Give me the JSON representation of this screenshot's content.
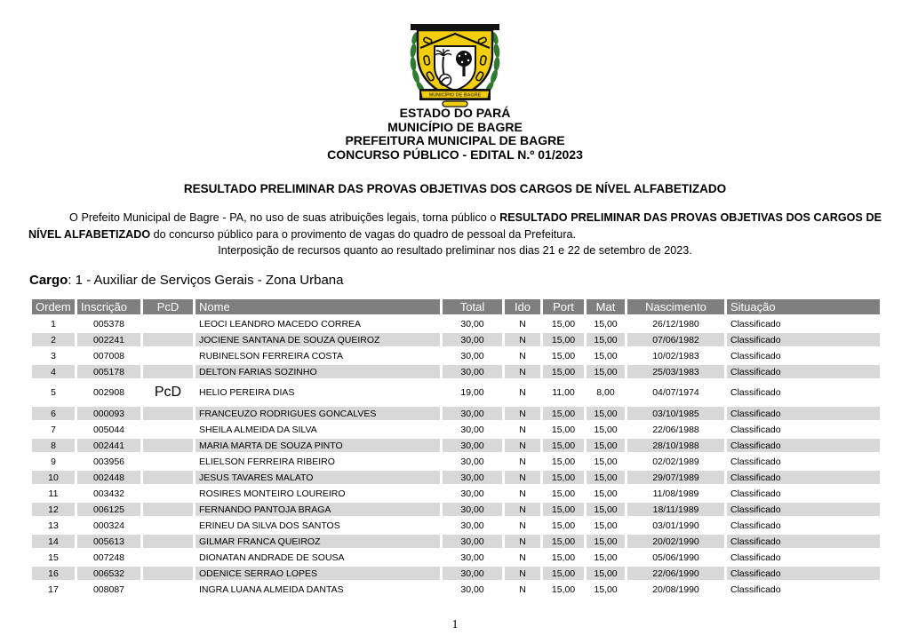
{
  "crest": {
    "banner_text": "MUNICÍPIO DE BAGRE"
  },
  "org_header": {
    "lines": [
      "ESTADO DO PARÁ",
      "MUNICÍPIO DE BAGRE",
      "PREFEITURA MUNICIPAL DE BAGRE",
      "CONCURSO PÚBLICO - EDITAL N.º 01/2023"
    ]
  },
  "title": "RESULTADO PRELIMINAR DAS PROVAS OBJETIVAS DOS CARGOS DE NÍVEL ALFABETIZADO",
  "intro": {
    "before": "O Prefeito Municipal de Bagre - PA, no uso de suas atribuições legais, torna público o ",
    "bold": "RESULTADO PRELIMINAR DAS PROVAS OBJETIVAS DOS CARGOS DE NÍVEL ALFABETIZADO",
    "after": " do concurso público para o provimento de vagas do quadro de pessoal da Prefeitura.",
    "deadline": "Interposição de recursos quanto ao resultado preliminar nos dias 21 e 22 de setembro de 2023."
  },
  "cargo": {
    "label": "Cargo",
    "value": ": 1 - Auxiliar de Serviços Gerais - Zona Urbana"
  },
  "table": {
    "headers": [
      "Ordem",
      "Inscrição",
      "PcD",
      "Nome",
      "Total",
      "Ido",
      "Port",
      "Mat",
      "Nascimento",
      "Situação"
    ],
    "rows": [
      [
        "1",
        "005378",
        "",
        "LEOCI LEANDRO MACEDO CORREA",
        "30,00",
        "N",
        "15,00",
        "15,00",
        "26/12/1980",
        "Classificado"
      ],
      [
        "2",
        "002241",
        "",
        "JOCIENE SANTANA DE SOUZA QUEIROZ",
        "30,00",
        "N",
        "15,00",
        "15,00",
        "07/06/1982",
        "Classificado"
      ],
      [
        "3",
        "007008",
        "",
        "RUBINELSON FERREIRA COSTA",
        "30,00",
        "N",
        "15,00",
        "15,00",
        "10/02/1983",
        "Classificado"
      ],
      [
        "4",
        "005178",
        "",
        "DELTON FARIAS SOZINHO",
        "30,00",
        "N",
        "15,00",
        "15,00",
        "25/03/1983",
        "Classificado"
      ],
      [
        "5",
        "002908",
        "PcD",
        "HELIO PEREIRA DIAS",
        "19,00",
        "N",
        "11,00",
        "8,00",
        "04/07/1974",
        "Classificado"
      ],
      [
        "6",
        "000093",
        "",
        "FRANCEUZO RODRIGUES GONCALVES",
        "30,00",
        "N",
        "15,00",
        "15,00",
        "03/10/1985",
        "Classificado"
      ],
      [
        "7",
        "005044",
        "",
        "SHEILA ALMEIDA DA SILVA",
        "30,00",
        "N",
        "15,00",
        "15,00",
        "22/06/1988",
        "Classificado"
      ],
      [
        "8",
        "002441",
        "",
        "MARIA MARTA DE SOUZA PINTO",
        "30,00",
        "N",
        "15,00",
        "15,00",
        "28/10/1988",
        "Classificado"
      ],
      [
        "9",
        "003956",
        "",
        "ELIELSON FERREIRA RIBEIRO",
        "30,00",
        "N",
        "15,00",
        "15,00",
        "02/02/1989",
        "Classificado"
      ],
      [
        "10",
        "002448",
        "",
        "JESUS TAVARES MALATO",
        "30,00",
        "N",
        "15,00",
        "15,00",
        "29/07/1989",
        "Classificado"
      ],
      [
        "11",
        "003432",
        "",
        "ROSIRES MONTEIRO LOUREIRO",
        "30,00",
        "N",
        "15,00",
        "15,00",
        "11/08/1989",
        "Classificado"
      ],
      [
        "12",
        "006125",
        "",
        "FERNANDO PANTOJA BRAGA",
        "30,00",
        "N",
        "15,00",
        "15,00",
        "18/11/1989",
        "Classificado"
      ],
      [
        "13",
        "000324",
        "",
        "ERINEU DA SILVA DOS SANTOS",
        "30,00",
        "N",
        "15,00",
        "15,00",
        "03/01/1990",
        "Classificado"
      ],
      [
        "14",
        "005613",
        "",
        "GILMAR FRANCA QUEIROZ",
        "30,00",
        "N",
        "15,00",
        "15,00",
        "20/02/1990",
        "Classificado"
      ],
      [
        "15",
        "007248",
        "",
        "DIONATAN ANDRADE DE SOUSA",
        "30,00",
        "N",
        "15,00",
        "15,00",
        "05/06/1990",
        "Classificado"
      ],
      [
        "16",
        "006532",
        "",
        "ODENICE SERRAO LOPES",
        "30,00",
        "N",
        "15,00",
        "15,00",
        "22/06/1990",
        "Classificado"
      ],
      [
        "17",
        "008087",
        "",
        "INGRA LUANA ALMEIDA DANTAS",
        "30,00",
        "N",
        "15,00",
        "15,00",
        "20/08/1990",
        "Classificado"
      ]
    ]
  },
  "footer": {
    "page_number": "1"
  },
  "colors": {
    "header_row_bg": "#7f7f7f",
    "zebra_row_bg": "#d8d8d8",
    "crest_gold": "#f2ce0d",
    "crest_green": "#2f7a2f"
  }
}
